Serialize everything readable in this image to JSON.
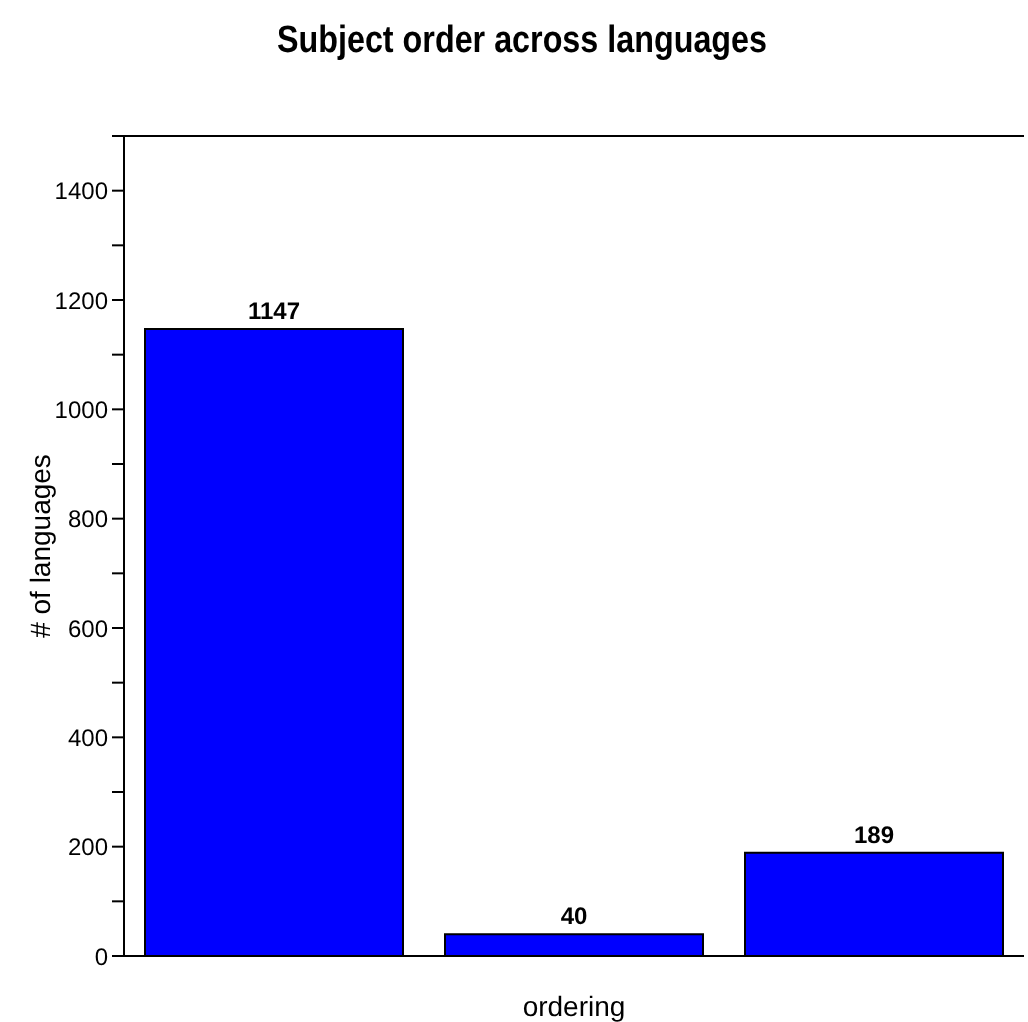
{
  "chart_data": {
    "type": "bar",
    "title": "Subject order across languages",
    "xlabel": "ordering",
    "ylabel": "# of languages",
    "categories": [
      null,
      null,
      null
    ],
    "values": [
      1147,
      40,
      189
    ],
    "color": "#0000ff",
    "ylim": [
      0,
      1500
    ],
    "yticks": [
      0,
      {
        "value": 100,
        "label": null
      },
      200,
      {
        "value": 300,
        "label": null
      },
      400,
      {
        "value": 500,
        "label": null
      },
      600,
      {
        "value": 700,
        "label": null
      },
      800,
      {
        "value": 900,
        "label": null
      },
      1000,
      {
        "value": 1100,
        "label": null
      },
      1200,
      {
        "value": 1300,
        "label": null
      },
      1400,
      {
        "value": 1500,
        "label": null
      }
    ],
    "data_labels": true,
    "grid": false,
    "legend": false
  }
}
